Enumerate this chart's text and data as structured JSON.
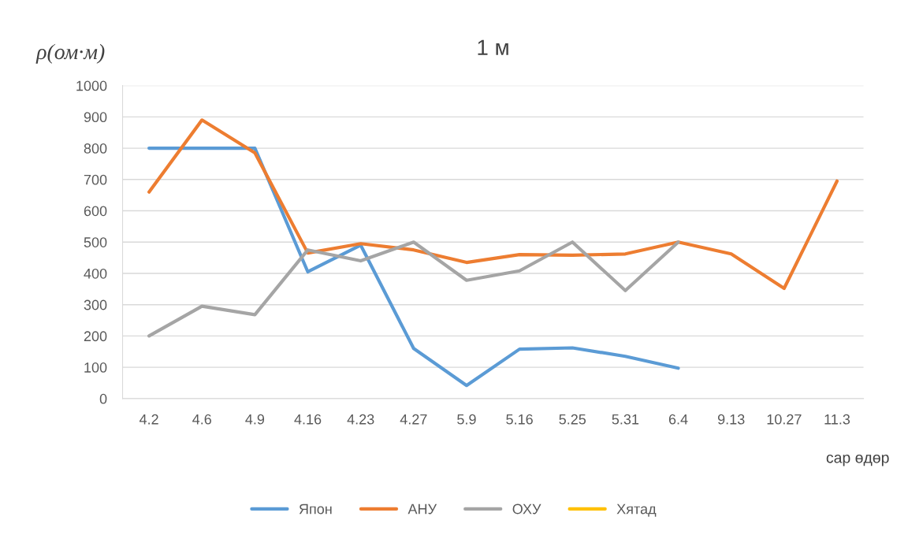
{
  "chart_data": {
    "type": "line",
    "title": "1 м",
    "ylabel": "ρ(ом·м)",
    "xlabel": "сар өдөр",
    "categories": [
      "4.2",
      "4.6",
      "4.9",
      "4.16",
      "4.23",
      "4.27",
      "5.9",
      "5.16",
      "5.25",
      "5.31",
      "6.4",
      "9.13",
      "10.27",
      "11.3"
    ],
    "series": [
      {
        "name": "Япон",
        "color": "#5b9bd5",
        "values": [
          800,
          800,
          800,
          405,
          490,
          160,
          42,
          158,
          162,
          135,
          97,
          null,
          null,
          null
        ]
      },
      {
        "name": "АНУ",
        "color": "#ed7d31",
        "values": [
          660,
          890,
          785,
          465,
          495,
          475,
          435,
          460,
          458,
          462,
          500,
          462,
          352,
          695
        ]
      },
      {
        "name": "ОХУ",
        "color": "#a5a5a5",
        "values": [
          200,
          295,
          268,
          475,
          440,
          500,
          378,
          408,
          500,
          345,
          500,
          null,
          null,
          null
        ]
      },
      {
        "name": "Хятад",
        "color": "#ffc000",
        "values": [
          null,
          null,
          null,
          null,
          null,
          null,
          null,
          null,
          null,
          null,
          null,
          null,
          null,
          null
        ]
      }
    ],
    "ylim": [
      0,
      1000
    ],
    "yticks": [
      0,
      100,
      200,
      300,
      400,
      500,
      600,
      700,
      800,
      900,
      1000
    ],
    "grid": "y",
    "legend": "bottom",
    "marker": "none",
    "line_style": "solid"
  }
}
